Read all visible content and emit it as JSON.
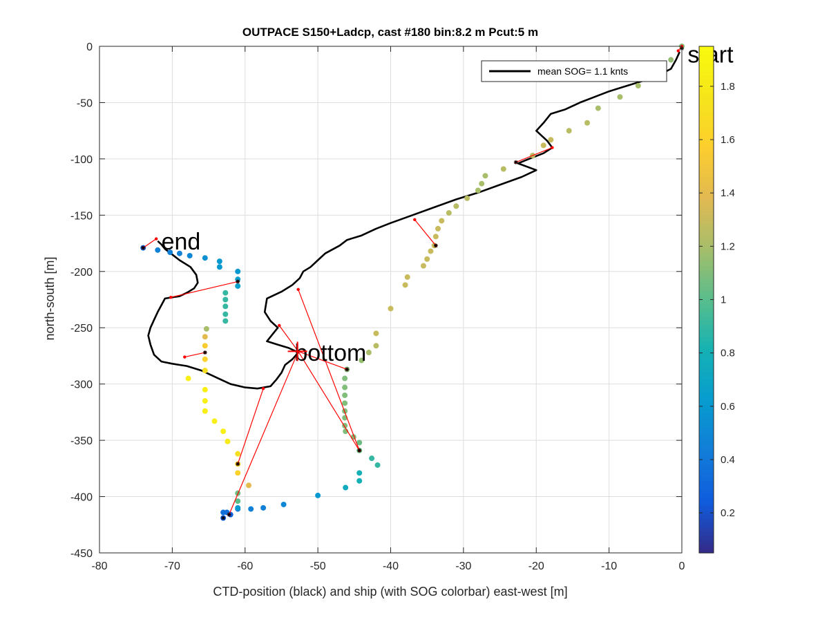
{
  "chart_data": {
    "type": "scatter",
    "title": "OUTPACE S150+Ladcp, cast #180 bin:8.2 m  Pcut:5 m",
    "xlabel": "CTD-position (black) and ship (with SOG colorbar) east-west [m]",
    "ylabel": "north-south [m]",
    "xlim": [
      -80,
      0
    ],
    "ylim": [
      -450,
      0
    ],
    "xticks": [
      -80,
      -70,
      -60,
      -50,
      -40,
      -30,
      -20,
      -10,
      0
    ],
    "yticks": [
      0,
      -50,
      -100,
      -150,
      -200,
      -250,
      -300,
      -350,
      -400,
      -450
    ],
    "grid": true,
    "legend": {
      "entries": [
        "mean SOG=  1.1 knts"
      ],
      "placement": "top-right"
    },
    "annotations": [
      {
        "text": "start",
        "x": 0.8,
        "y": -7
      },
      {
        "text": "end",
        "x": -71.5,
        "y": -173
      },
      {
        "text": "bottom",
        "x": -53.2,
        "y": -272
      }
    ],
    "colorbar": {
      "colormap": "parula",
      "range": [
        0.05,
        1.95
      ],
      "ticks": [
        0.2,
        0.4,
        0.6,
        0.8,
        1,
        1.2,
        1.4,
        1.6,
        1.8
      ],
      "tick_labels": [
        "0.2",
        "0.4",
        "0.6",
        "0.8",
        "1",
        "1.2",
        "1.4",
        "1.6",
        "1.8"
      ]
    },
    "ctd_track": [
      [
        -0.3,
        -5
      ],
      [
        -0.8,
        -12
      ],
      [
        -1.5,
        -20
      ],
      [
        -3,
        -25
      ],
      [
        -5,
        -30
      ],
      [
        -6,
        -32
      ],
      [
        -8,
        -36
      ],
      [
        -10,
        -40
      ],
      [
        -12,
        -45
      ],
      [
        -14,
        -50
      ],
      [
        -16,
        -56
      ],
      [
        -18,
        -60
      ],
      [
        -19,
        -68
      ],
      [
        -20,
        -75
      ],
      [
        -18.5,
        -84
      ],
      [
        -17.8,
        -90
      ],
      [
        -19,
        -95
      ],
      [
        -21,
        -100
      ],
      [
        -22.5,
        -104
      ],
      [
        -20,
        -110
      ],
      [
        -22,
        -116
      ],
      [
        -25,
        -123
      ],
      [
        -28,
        -130
      ],
      [
        -31,
        -136
      ],
      [
        -34,
        -143
      ],
      [
        -37,
        -150
      ],
      [
        -40,
        -157
      ],
      [
        -42,
        -162
      ],
      [
        -44,
        -168
      ],
      [
        -46,
        -172
      ],
      [
        -47,
        -177
      ],
      [
        -49,
        -184
      ],
      [
        -50,
        -190
      ],
      [
        -51,
        -196
      ],
      [
        -52,
        -200
      ],
      [
        -52.5,
        -206
      ],
      [
        -53.5,
        -212
      ],
      [
        -55,
        -218
      ],
      [
        -57,
        -224
      ],
      [
        -57.3,
        -236
      ],
      [
        -56.5,
        -244
      ],
      [
        -55.5,
        -250
      ],
      [
        -56,
        -254
      ],
      [
        -57,
        -262
      ],
      [
        -55.5,
        -265
      ],
      [
        -54,
        -268
      ],
      [
        -52.7,
        -272
      ],
      [
        -53.5,
        -278
      ],
      [
        -54.5,
        -283
      ],
      [
        -55,
        -290
      ],
      [
        -55.7,
        -296
      ],
      [
        -56.5,
        -302
      ],
      [
        -58.3,
        -304
      ],
      [
        -60,
        -303
      ],
      [
        -62,
        -300
      ],
      [
        -64,
        -294
      ],
      [
        -66,
        -288
      ],
      [
        -68,
        -284
      ],
      [
        -70,
        -282
      ],
      [
        -71.5,
        -280
      ],
      [
        -72.5,
        -274
      ],
      [
        -73,
        -265
      ],
      [
        -73.3,
        -257
      ],
      [
        -73,
        -250
      ],
      [
        -72.5,
        -243
      ],
      [
        -72,
        -236
      ],
      [
        -71.5,
        -230
      ],
      [
        -71,
        -224
      ],
      [
        -70,
        -223
      ],
      [
        -69,
        -222
      ],
      [
        -68,
        -219
      ],
      [
        -67,
        -215
      ],
      [
        -66.5,
        -210
      ],
      [
        -66.7,
        -203
      ],
      [
        -67.5,
        -196
      ],
      [
        -69,
        -190
      ],
      [
        -70,
        -185
      ],
      [
        -71,
        -180
      ],
      [
        -71.5,
        -176
      ],
      [
        -72,
        -173
      ]
    ],
    "ship_points": [
      [
        0,
        0,
        1.1
      ],
      [
        -1.5,
        -12,
        1.15
      ],
      [
        -3.5,
        -20,
        1.15
      ],
      [
        -6,
        -35,
        1.2
      ],
      [
        -8.5,
        -45,
        1.2
      ],
      [
        -11.5,
        -55,
        1.2
      ],
      [
        -13,
        -68,
        1.25
      ],
      [
        -15.5,
        -75,
        1.25
      ],
      [
        -18,
        -83,
        1.3
      ],
      [
        -19,
        -88,
        1.3
      ],
      [
        -20.5,
        -97,
        1.25
      ],
      [
        -24.5,
        -109,
        1.25
      ],
      [
        -27,
        -115,
        1.2
      ],
      [
        -27.5,
        -122,
        1.2
      ],
      [
        -28,
        -128,
        1.2
      ],
      [
        -29.5,
        -135,
        1.25
      ],
      [
        -31,
        -142,
        1.25
      ],
      [
        -32,
        -148,
        1.25
      ],
      [
        -33,
        -155,
        1.3
      ],
      [
        -33.5,
        -162,
        1.3
      ],
      [
        -33.8,
        -169,
        1.3
      ],
      [
        -34,
        -177,
        1.3
      ],
      [
        -34.5,
        -182,
        1.3
      ],
      [
        -35,
        -189,
        1.3
      ],
      [
        -35.5,
        -195,
        1.3
      ],
      [
        -37.7,
        -205,
        1.3
      ],
      [
        -38,
        -212,
        1.3
      ],
      [
        -40,
        -233,
        1.3
      ],
      [
        -42,
        -255,
        1.3
      ],
      [
        -42,
        -266,
        1.25
      ],
      [
        -43,
        -272,
        1.2
      ],
      [
        -44,
        -279,
        1.15
      ],
      [
        -46,
        -287,
        1.1
      ],
      [
        -46.3,
        -295,
        1.1
      ],
      [
        -46.3,
        -303,
        1.1
      ],
      [
        -46.3,
        -310,
        1.1
      ],
      [
        -46.3,
        -317,
        1.1
      ],
      [
        -46.3,
        -324,
        1.1
      ],
      [
        -46.3,
        -330,
        1.1
      ],
      [
        -46.3,
        -337,
        1.1
      ],
      [
        -46.2,
        -342,
        1.1
      ],
      [
        -45.1,
        -347,
        1.1
      ],
      [
        -44.3,
        -352,
        1.05
      ],
      [
        -44.3,
        -359,
        1.05
      ],
      [
        -42.6,
        -366,
        0.9
      ],
      [
        -41.8,
        -372,
        0.9
      ],
      [
        -44.3,
        -379,
        0.8
      ],
      [
        -44.3,
        -386,
        0.8
      ],
      [
        -46.2,
        -392,
        0.75
      ],
      [
        -50,
        -399,
        0.6
      ],
      [
        -54.7,
        -407,
        0.5
      ],
      [
        -57.5,
        -410,
        0.45
      ],
      [
        -59.2,
        -411,
        0.45
      ],
      [
        -61,
        -411,
        0.4
      ],
      [
        -62.5,
        -414,
        0.35
      ],
      [
        -63,
        -414,
        0.35
      ],
      [
        -63,
        -419,
        0.25
      ],
      [
        -62,
        -416,
        0.25
      ],
      [
        -61,
        -410,
        0.6
      ],
      [
        -61,
        -404,
        1.0
      ],
      [
        -61,
        -397,
        1.05
      ],
      [
        -59.5,
        -390,
        1.4
      ],
      [
        -61,
        -379,
        1.6
      ],
      [
        -61,
        -371,
        1.65
      ],
      [
        -61,
        -362,
        1.7
      ],
      [
        -62.4,
        -351,
        1.8
      ],
      [
        -63,
        -342,
        1.85
      ],
      [
        -64.2,
        -333,
        1.85
      ],
      [
        -65.5,
        -324,
        1.85
      ],
      [
        -65.5,
        -315,
        1.85
      ],
      [
        -65.5,
        -305,
        1.85
      ],
      [
        -67.8,
        -295,
        1.85
      ],
      [
        -65.5,
        -288,
        1.7
      ],
      [
        -65.5,
        -278,
        1.6
      ],
      [
        -65.5,
        -266,
        1.55
      ],
      [
        -65.5,
        -258,
        1.4
      ],
      [
        -65.3,
        -251,
        1.2
      ],
      [
        -62.7,
        -244,
        0.9
      ],
      [
        -62.7,
        -238,
        0.9
      ],
      [
        -62.7,
        -231,
        0.9
      ],
      [
        -62.7,
        -225,
        0.9
      ],
      [
        -62.7,
        -219,
        0.9
      ],
      [
        -61,
        -213,
        0.65
      ],
      [
        -61,
        -207,
        0.65
      ],
      [
        -61,
        -200,
        0.6
      ],
      [
        -63.5,
        -196,
        0.6
      ],
      [
        -63.5,
        -191,
        0.6
      ],
      [
        -65.5,
        -188,
        0.55
      ],
      [
        -67.6,
        -186,
        0.5
      ],
      [
        -69,
        -184,
        0.45
      ],
      [
        -70.3,
        -183,
        0.45
      ],
      [
        -72,
        -181,
        0.45
      ],
      [
        -74,
        -179,
        0.3
      ]
    ],
    "links": [
      [
        [
          0,
          0
        ],
        [
          -0.5,
          -4
        ]
      ],
      [
        [
          -17.8,
          -90
        ],
        [
          -22.8,
          -103
        ]
      ],
      [
        [
          -36.7,
          -154
        ],
        [
          -33.8,
          -177
        ]
      ],
      [
        [
          -52.7,
          -216
        ],
        [
          -44.3,
          -359
        ]
      ],
      [
        [
          -55.3,
          -248
        ],
        [
          -52.7,
          -271
        ]
      ],
      [
        [
          -52.7,
          -271
        ],
        [
          -46,
          -287
        ]
      ],
      [
        [
          -52.7,
          -271
        ],
        [
          -44.3,
          -359
        ]
      ],
      [
        [
          -52.7,
          -271
        ],
        [
          -62.2,
          -416
        ]
      ],
      [
        [
          -57.5,
          -304
        ],
        [
          -61,
          -371
        ]
      ],
      [
        [
          -61,
          -209
        ],
        [
          -70.2,
          -223
        ]
      ],
      [
        [
          -65.5,
          -272
        ],
        [
          -68.3,
          -276
        ]
      ],
      [
        [
          -72.2,
          -171
        ],
        [
          -74,
          -179
        ]
      ]
    ],
    "marked_points": [
      [
        0,
        -2
      ],
      [
        -22.8,
        -103
      ],
      [
        -33.8,
        -177
      ],
      [
        -46,
        -287
      ],
      [
        -44.3,
        -359
      ],
      [
        -61,
        -209
      ],
      [
        -65.5,
        -272
      ],
      [
        -61,
        -371
      ],
      [
        -62.2,
        -416
      ],
      [
        -63,
        -419
      ],
      [
        -74,
        -179
      ]
    ]
  }
}
